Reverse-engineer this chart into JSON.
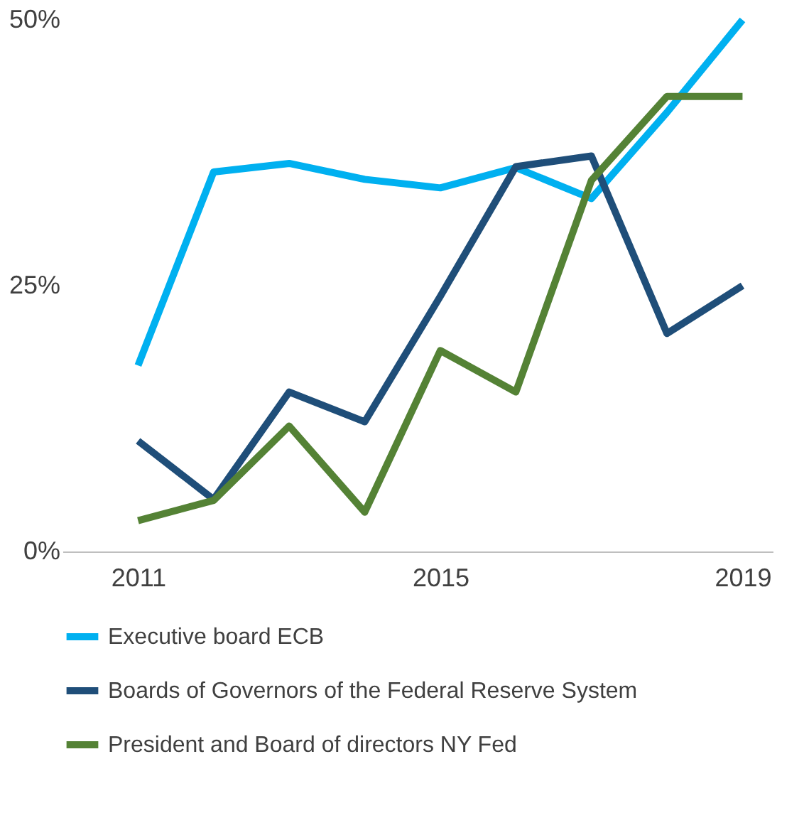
{
  "chart_data": {
    "type": "line",
    "x": [
      2011,
      2012,
      2013,
      2014,
      2015,
      2016,
      2017,
      2018,
      2019
    ],
    "series": [
      {
        "name": "Executive board ECB",
        "color": "#00b0f0",
        "values": [
          17.5,
          35.7,
          36.5,
          35,
          34.2,
          36.1,
          33.2,
          41.3,
          50
        ]
      },
      {
        "name": "Boards of Governors of the Federal Reserve System",
        "color": "#1f4e79",
        "values": [
          10.4,
          4.9,
          15,
          12.2,
          24,
          36.2,
          37.2,
          20.5,
          25
        ]
      },
      {
        "name": "President and Board of directors NY Fed",
        "color": "#548235",
        "values": [
          2.9,
          4.8,
          11.8,
          3.7,
          18.9,
          15,
          34.9,
          42.8,
          42.8
        ]
      }
    ],
    "xlim": [
      2010,
      2019.4
    ],
    "xticks": [
      2011,
      2015,
      2019
    ],
    "ylim": [
      0,
      50
    ],
    "yticks": [
      {
        "value": 0,
        "label": "0%"
      },
      {
        "value": 25,
        "label": "25%"
      },
      {
        "value": 50,
        "label": "50%"
      }
    ],
    "grid": false,
    "legend": "bottom",
    "marker": "none",
    "line_style": "solid"
  }
}
